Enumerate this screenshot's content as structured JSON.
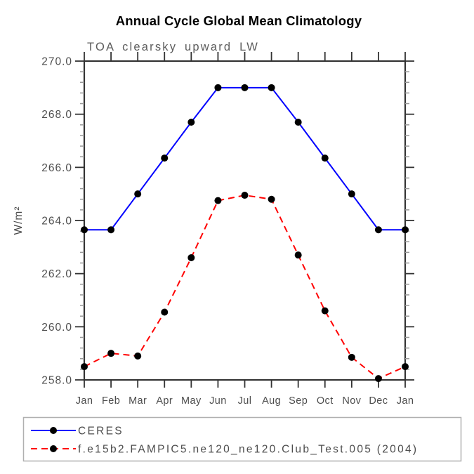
{
  "page": {
    "background": "#ffffff",
    "axis_color": "#333333",
    "minor_tick_color": "#999999",
    "text_color": "#4d4d4d"
  },
  "chart_data": {
    "type": "line",
    "title": "Annual Cycle Global Mean Climatology",
    "subtitle": "TOA clearsky upward LW",
    "ylabel": "W/m²",
    "xlabel": "",
    "categories": [
      "Jan",
      "Feb",
      "Mar",
      "Apr",
      "May",
      "Jun",
      "Jul",
      "Aug",
      "Sep",
      "Oct",
      "Nov",
      "Dec",
      "Jan"
    ],
    "ylim": [
      258.0,
      270.0
    ],
    "ytick_labels": [
      "258.0",
      "260.0",
      "262.0",
      "264.0",
      "266.0",
      "268.0",
      "270.0"
    ],
    "ytick_step": 2.0,
    "minor_tick_step": 0.4,
    "grid": false,
    "legend_position": "bottom-left",
    "marker": {
      "shape": "circle",
      "color": "#000000",
      "size": 10
    },
    "series": [
      {
        "name": "CERES",
        "color": "#0000ff",
        "line_style": "solid",
        "values": [
          263.65,
          263.65,
          265.0,
          266.35,
          267.7,
          269.0,
          269.0,
          269.0,
          267.7,
          266.35,
          265.0,
          263.65,
          263.65
        ]
      },
      {
        "name": "f.e15b2.FAMPIC5.ne120_ne120.Club_Test.005 (2004)",
        "color": "#ff0000",
        "line_style": "dashed",
        "values": [
          258.5,
          259.0,
          258.9,
          260.55,
          262.6,
          264.75,
          264.95,
          264.8,
          262.7,
          260.6,
          258.85,
          258.05,
          258.5
        ]
      }
    ]
  }
}
